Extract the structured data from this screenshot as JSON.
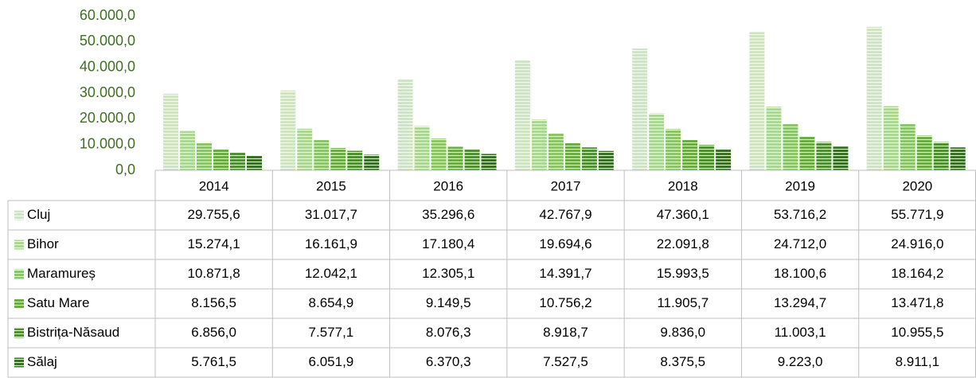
{
  "chart_data": {
    "type": "bar",
    "categories": [
      "2014",
      "2015",
      "2016",
      "2017",
      "2018",
      "2019",
      "2020"
    ],
    "series": [
      {
        "name": "Cluj",
        "color": "#cfe3c6",
        "values": [
          29755.6,
          31017.7,
          35296.6,
          42767.9,
          47360.1,
          53716.2,
          55771.9
        ],
        "value_labels": [
          "29.755,6",
          "31.017,7",
          "35.296,6",
          "42.767,9",
          "47.360,1",
          "53.716,2",
          "55.771,9"
        ]
      },
      {
        "name": "Bihor",
        "color": "#add596",
        "values": [
          15274.1,
          16161.9,
          17180.4,
          19694.6,
          22091.8,
          24712.0,
          24916.0
        ],
        "value_labels": [
          "15.274,1",
          "16.161,9",
          "17.180,4",
          "19.694,6",
          "22.091,8",
          "24.712,0",
          "24.916,0"
        ]
      },
      {
        "name": "Maramureș",
        "color": "#8cc36b",
        "values": [
          10871.8,
          12042.1,
          12305.1,
          14391.7,
          15993.5,
          18100.6,
          18164.2
        ],
        "value_labels": [
          "10.871,8",
          "12.042,1",
          "12.305,1",
          "14.391,7",
          "15.993,5",
          "18.100,6",
          "18.164,2"
        ]
      },
      {
        "name": "Satu Mare",
        "color": "#6dab48",
        "values": [
          8156.5,
          8654.9,
          9149.5,
          10756.2,
          11905.7,
          13294.7,
          13471.8
        ],
        "value_labels": [
          "8.156,5",
          "8.654,9",
          "9.149,5",
          "10.756,2",
          "11.905,7",
          "13.294,7",
          "13.471,8"
        ]
      },
      {
        "name": "Bistrița-Năsaud",
        "color": "#518f34",
        "values": [
          6856.0,
          7577.1,
          8076.3,
          8918.7,
          9836.0,
          11003.1,
          10955.5
        ],
        "value_labels": [
          "6.856,0",
          "7.577,1",
          "8.076,3",
          "8.918,7",
          "9.836,0",
          "11.003,1",
          "10.955,5"
        ]
      },
      {
        "name": "Sălaj",
        "color": "#3b6e26",
        "values": [
          5761.5,
          6051.9,
          6370.3,
          7527.5,
          8375.5,
          9223.0,
          8911.1
        ],
        "value_labels": [
          "5.761,5",
          "6.051,9",
          "6.370,3",
          "7.527,5",
          "8.375,5",
          "9.223,0",
          "8.911,1"
        ]
      }
    ],
    "ylim": [
      0,
      60000
    ],
    "yticks": [
      {
        "value": 0,
        "label": "0,0"
      },
      {
        "value": 10000,
        "label": "10.000,0"
      },
      {
        "value": 20000,
        "label": "20.000,0"
      },
      {
        "value": 30000,
        "label": "30.000,0"
      },
      {
        "value": 40000,
        "label": "40.000,0"
      },
      {
        "value": 50000,
        "label": "50.000,0"
      },
      {
        "value": 60000,
        "label": "60.000,0"
      }
    ],
    "grid": false
  }
}
